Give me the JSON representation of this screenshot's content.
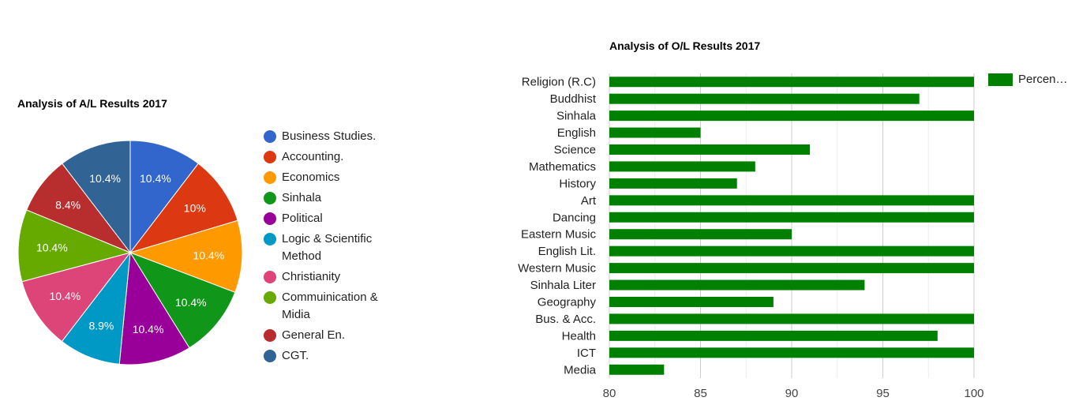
{
  "chart_data": [
    {
      "type": "pie",
      "title": "Analysis of A/L Results 2017",
      "legend_position": "right",
      "slices": [
        {
          "label": "Business Studies.",
          "value": 10.4,
          "display": "10.4%",
          "color": "#3366cc"
        },
        {
          "label": "Accounting.",
          "value": 10.0,
          "display": "10%",
          "color": "#dc3912"
        },
        {
          "label": "Economics",
          "value": 10.4,
          "display": "10.4%",
          "color": "#ff9900"
        },
        {
          "label": "Sinhala",
          "value": 10.4,
          "display": "10.4%",
          "color": "#109618"
        },
        {
          "label": "Political",
          "value": 10.4,
          "display": "10.4%",
          "color": "#990099"
        },
        {
          "label": "Logic & Scientific Method",
          "value": 8.9,
          "display": "8.9%",
          "color": "#0099c6"
        },
        {
          "label": "Christianity",
          "value": 10.4,
          "display": "10.4%",
          "color": "#dd4477"
        },
        {
          "label": "Commuinication & Midia",
          "value": 10.4,
          "display": "10.4%",
          "color": "#66aa00"
        },
        {
          "label": "General En.",
          "value": 8.4,
          "display": "8.4%",
          "color": "#b82e2e"
        },
        {
          "label": "CGT.",
          "value": 10.4,
          "display": "10.4%",
          "color": "#316395"
        }
      ]
    },
    {
      "type": "bar",
      "orientation": "horizontal",
      "title": "Analysis of O/L Results 2017",
      "legend_position": "top-right",
      "categories": [
        "Religion (R.C)",
        "Buddhist",
        "Sinhala",
        "English",
        "Science",
        "Mathematics",
        "History",
        "Art",
        "Dancing",
        "Eastern Music",
        "English Lit.",
        "Western Music",
        "Sinhala Liter",
        "Geography",
        "Bus. & Acc.",
        "Health",
        "ICT",
        "Media"
      ],
      "series": [
        {
          "name": "Percen…",
          "color": "#008000",
          "values": [
            100,
            97,
            100,
            85,
            91,
            88,
            87,
            100,
            100,
            90,
            100,
            100,
            94,
            89,
            100,
            98,
            100,
            83
          ]
        }
      ],
      "xlim": [
        80,
        100
      ],
      "xticks": [
        "80",
        "85",
        "90",
        "95",
        "100"
      ],
      "grid": true
    }
  ]
}
